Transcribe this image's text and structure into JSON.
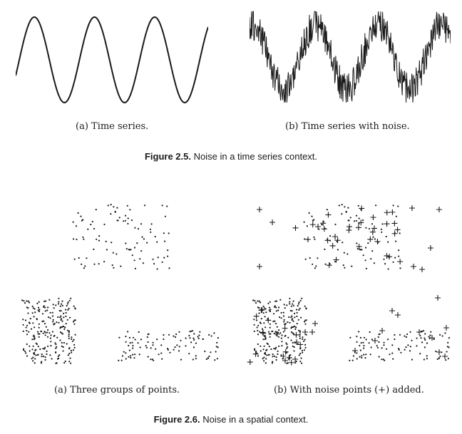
{
  "figure_2_5": {
    "label": "Figure 2.5.",
    "text": "Noise in a time series context.",
    "panel_a_caption": "(a) Time series.",
    "panel_b_caption": "(b) Time series with noise."
  },
  "figure_2_6": {
    "label": "Figure 2.6.",
    "text": "Noise in a spatial context.",
    "panel_a_caption": "(a) Three groups of points.",
    "panel_b_caption": "(b) With noise points (+) added."
  },
  "colors": {
    "ink": "#1a1a1a"
  },
  "chart_data": [
    {
      "type": "line",
      "function": "sine",
      "periods": 3.2,
      "noise": false
    },
    {
      "type": "line",
      "function": "sine",
      "periods": 3.2,
      "noise": true
    },
    {
      "type": "scatter",
      "groups": 3,
      "noise_points": false
    },
    {
      "type": "scatter",
      "groups": 3,
      "noise_points": true,
      "noise_marker": "+"
    }
  ]
}
